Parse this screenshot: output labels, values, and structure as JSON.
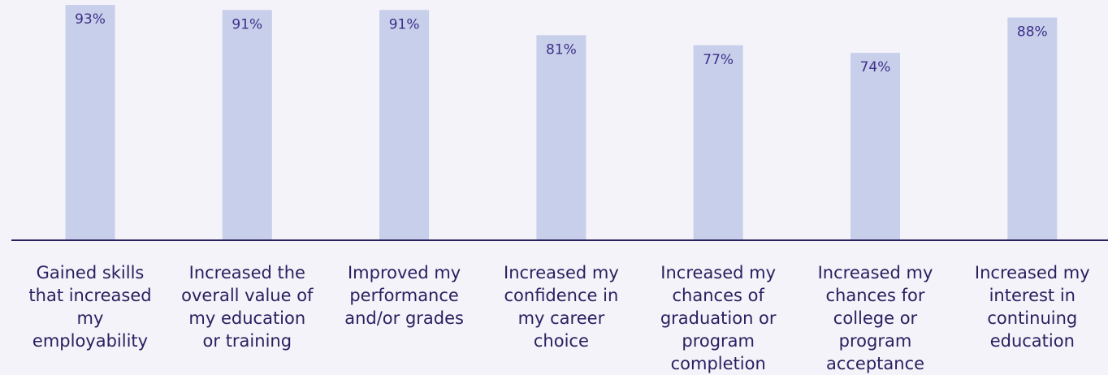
{
  "chart_data": {
    "type": "bar",
    "categories": [
      "Gained skills that increased my employability",
      "Increased the overall value of my education or training",
      "Improved my performance and/or grades",
      "Increased my confidence in my career choice",
      "Increased my chances of graduation or program completion",
      "Increased my chances for college or program acceptance",
      "Increased my interest in continuing education"
    ],
    "values": [
      93,
      91,
      91,
      81,
      77,
      74,
      88
    ],
    "value_labels": [
      "93%",
      "91%",
      "91%",
      "81%",
      "77%",
      "74%",
      "88%"
    ],
    "color": "#c8cfea"
  }
}
